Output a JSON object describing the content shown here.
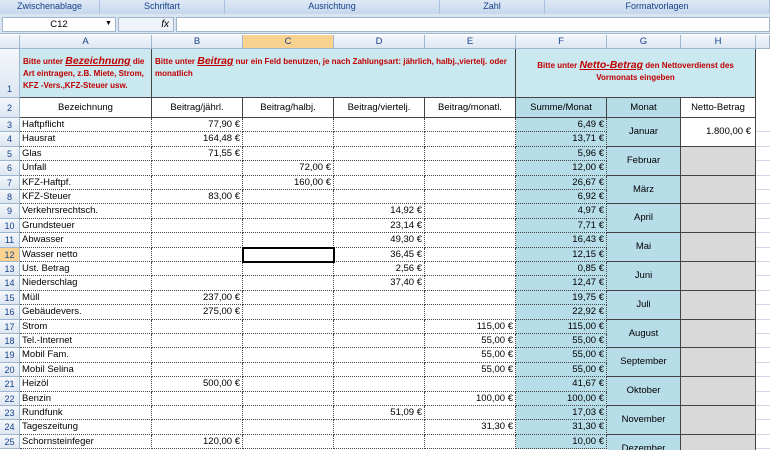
{
  "ribbon_groups": [
    "Zwischenablage",
    "Schriftart",
    "Ausrichtung",
    "Zahl",
    "Formatvorlagen"
  ],
  "name_box": "C12",
  "column_headers": [
    "A",
    "B",
    "C",
    "D",
    "E",
    "F",
    "G",
    "H"
  ],
  "row_numbers": [
    1,
    2,
    3,
    4,
    5,
    6,
    7,
    8,
    9,
    10,
    11,
    12,
    13,
    14,
    15,
    16,
    17,
    18,
    19,
    20,
    21,
    22,
    23,
    24,
    25
  ],
  "instructions": [
    {
      "pre": "Bitte unter",
      "key": "Bezeichnung",
      "post": "die Art eintragen, z.B. Miete, Strom, KFZ -Vers.,KFZ-Steuer usw."
    },
    {
      "pre": "Bitte unter",
      "key": "Beitrag",
      "post": "nur ein Feld benutzen, je nach Zahlungsart: jährlich, halbj.,viertelj. oder monatlich"
    },
    {
      "pre": "Bitte unter",
      "key": "Netto-Betrag",
      "post": "den Nettoverdienst des Vormonats eingeben"
    }
  ],
  "headers": [
    "Bezeichnung",
    "Beitrag/jährl.",
    "Beitrag/halbj.",
    "Beitrag/viertelj.",
    "Beitrag/monatl.",
    "Summe/Monat",
    "Monat",
    "Netto-Betrag"
  ],
  "rows": [
    [
      "Haftpflicht",
      "77,90 €",
      null,
      null,
      null,
      "6,49 €"
    ],
    [
      "Hausrat",
      "164,48 €",
      null,
      null,
      null,
      "13,71 €"
    ],
    [
      "Glas",
      "71,55 €",
      null,
      null,
      null,
      "5,96 €"
    ],
    [
      "Unfall",
      null,
      "72,00 €",
      null,
      null,
      "12,00 €"
    ],
    [
      "KFZ-Haftpf.",
      null,
      "160,00 €",
      null,
      null,
      "26,67 €"
    ],
    [
      "KFZ-Steuer",
      "83,00 €",
      null,
      null,
      null,
      "6,92 €"
    ],
    [
      "Verkehrsrechtsch.",
      null,
      null,
      "14,92 €",
      null,
      "4,97 €"
    ],
    [
      "Grundsteuer",
      null,
      null,
      "23,14 €",
      null,
      "7,71 €"
    ],
    [
      "Abwasser",
      null,
      null,
      "49,30 €",
      null,
      "16,43 €"
    ],
    [
      "Wasser netto",
      null,
      null,
      "36,45 €",
      null,
      "12,15 €"
    ],
    [
      "Ust. Betrag",
      null,
      null,
      "2,56 €",
      null,
      "0,85 €"
    ],
    [
      "Niederschlag",
      null,
      null,
      "37,40 €",
      null,
      "12,47 €"
    ],
    [
      "Müll",
      "237,00 €",
      null,
      null,
      null,
      "19,75 €"
    ],
    [
      "Gebäudevers.",
      "275,00 €",
      null,
      null,
      null,
      "22,92 €"
    ],
    [
      "Strom",
      null,
      null,
      null,
      "115,00 €",
      "115,00 €"
    ],
    [
      "Tel.-Internet",
      null,
      null,
      null,
      "55,00 €",
      "55,00 €"
    ],
    [
      "Mobil Fam.",
      null,
      null,
      null,
      "55,00 €",
      "55,00 €"
    ],
    [
      "Mobil Selina",
      null,
      null,
      null,
      "55,00 €",
      "55,00 €"
    ],
    [
      "Heizöl",
      "500,00 €",
      null,
      null,
      null,
      "41,67 €"
    ],
    [
      "Benzin",
      null,
      null,
      null,
      "100,00 €",
      "100,00 €"
    ],
    [
      "Rundfunk",
      null,
      null,
      "51,09 €",
      null,
      "17,03 €"
    ],
    [
      "Tageszeitung",
      null,
      null,
      null,
      "31,30 €",
      "31,30 €"
    ],
    [
      "Schornsteinfeger",
      "120,00 €",
      null,
      null,
      null,
      "10,00 €"
    ]
  ],
  "months": [
    "Januar",
    "Februar",
    "März",
    "April",
    "Mai",
    "Juni",
    "Juli",
    "August",
    "September",
    "Oktober",
    "November",
    "Dezember"
  ],
  "netto": [
    "1.800,00 €"
  ]
}
